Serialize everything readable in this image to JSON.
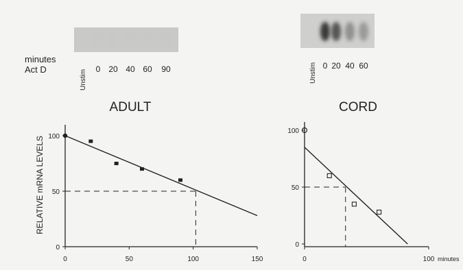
{
  "blot_labels": {
    "row1": "minutes",
    "row2": "Act D"
  },
  "blots": {
    "adult": {
      "unstim_label": "Unstim",
      "lanes": [
        "0",
        "20",
        "40",
        "60",
        "90"
      ],
      "band_intensity": [
        0.05,
        0.05,
        0.05,
        0.05,
        0.05
      ]
    },
    "cord": {
      "unstim_label": "Unstim",
      "lanes": [
        "0",
        "20",
        "40",
        "60"
      ],
      "band_intensity": [
        0.95,
        0.85,
        0.6,
        0.55
      ]
    }
  },
  "colors": {
    "background": "#f4f4f2",
    "ink": "#222222",
    "blot_light": "#c9c9c7",
    "blot_dark": "#3a3a3a"
  },
  "chart_data": [
    {
      "type": "scatter",
      "title": "ADULT",
      "ylabel": "RELATIVE mRNA LEVELS",
      "xlabel": "",
      "xlim": [
        0,
        150
      ],
      "ylim": [
        0,
        110
      ],
      "xticks": [
        "0",
        "50",
        "100",
        "150"
      ],
      "yticks": [
        "0",
        "50",
        "100"
      ],
      "marker": "filled-square",
      "points": [
        {
          "x": 0,
          "y": 100
        },
        {
          "x": 20,
          "y": 95
        },
        {
          "x": 40,
          "y": 75
        },
        {
          "x": 60,
          "y": 70
        },
        {
          "x": 90,
          "y": 60
        }
      ],
      "fit_line": {
        "x": [
          0,
          150
        ],
        "y": [
          100,
          28
        ]
      },
      "half_life_guide": {
        "x": 102,
        "y": 50
      }
    },
    {
      "type": "scatter",
      "title": "CORD",
      "ylabel": "",
      "xlabel": "minutes",
      "xlim": [
        0,
        100
      ],
      "ylim": [
        0,
        110
      ],
      "xticks": [
        "0",
        "100"
      ],
      "yticks": [
        "0",
        "50",
        "100"
      ],
      "marker": "open-square",
      "points": [
        {
          "x": 0,
          "y": 100
        },
        {
          "x": 20,
          "y": 60
        },
        {
          "x": 40,
          "y": 35
        },
        {
          "x": 60,
          "y": 28
        }
      ],
      "fit_line": {
        "x": [
          0,
          83
        ],
        "y": [
          85,
          0
        ]
      },
      "half_life_guide": {
        "x": 33,
        "y": 50
      }
    }
  ]
}
